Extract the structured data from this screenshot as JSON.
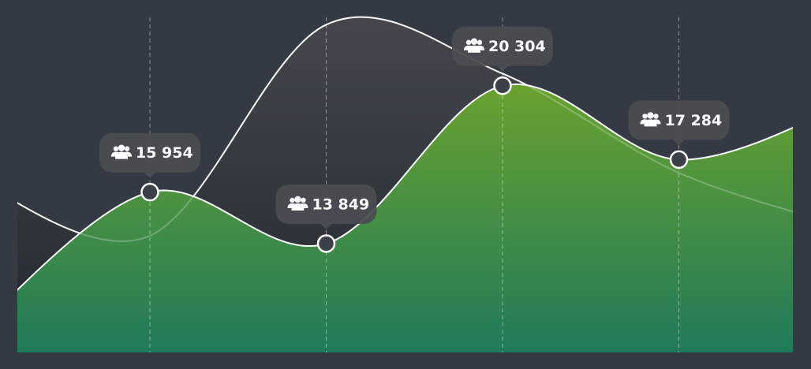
{
  "chart_data": {
    "type": "area",
    "categories": [
      null,
      null,
      null,
      null,
      null,
      null
    ],
    "ylim": [
      9400,
      23100
    ],
    "series": [
      {
        "color": "#3f444b",
        "values": [
          16465,
          14171,
          22800,
          20800,
          16747,
          14430
        ]
      },
      {
        "color": "#5f9d35",
        "values": [
          10270,
          15954,
          13849,
          20304,
          17284,
          19740
        ],
        "value_labels": [
          null,
          "15 954",
          "13 849",
          "20 304",
          "17 284",
          null
        ]
      }
    ]
  }
}
